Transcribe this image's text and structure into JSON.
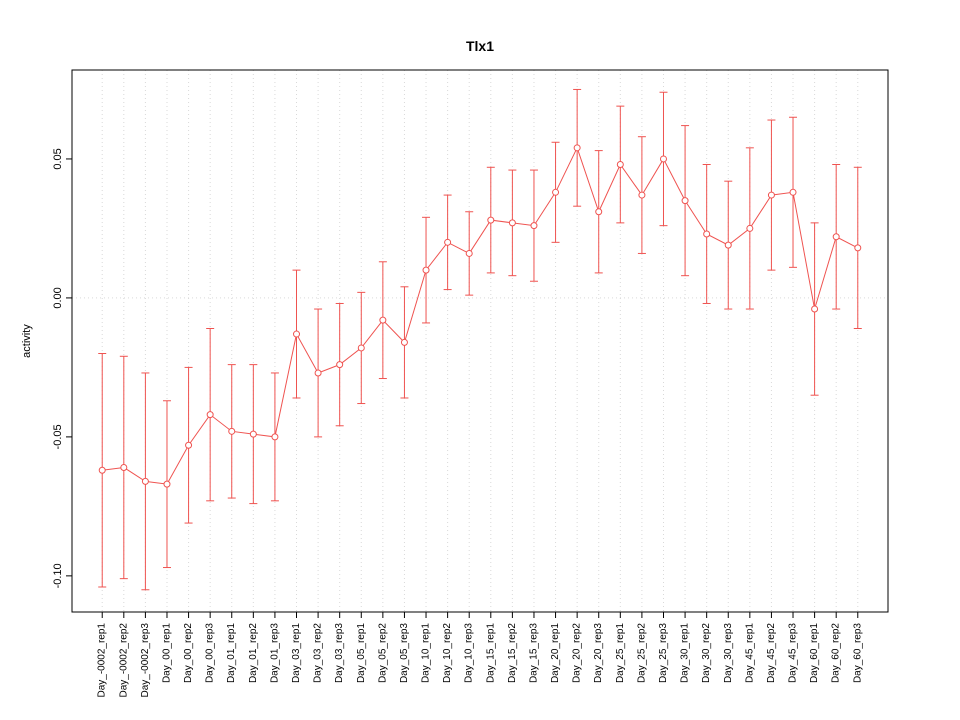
{
  "page": {
    "background": "#ffffff"
  },
  "chart_data": {
    "type": "line",
    "title": "Tlx1",
    "xlabel": "",
    "ylabel": "activity",
    "legend": "none",
    "marker": "open-circle",
    "error_bars": true,
    "series_color": "#ef5350",
    "grid_color": "#d9d9d9",
    "axis_color": "#000000",
    "grid": "dotted vertical line per category, dotted horizontal line at 0",
    "ylim": [
      -0.113,
      0.082
    ],
    "yticks": [
      0.05,
      0.0,
      -0.05,
      -0.1
    ],
    "ytick_labels": [
      "0.05",
      "0.00",
      "-0.05",
      "-0.10"
    ],
    "categories": [
      "Day_-0002_rep1",
      "Day_-0002_rep2",
      "Day_-0002_rep3",
      "Day_00_rep1",
      "Day_00_rep2",
      "Day_00_rep3",
      "Day_01_rep1",
      "Day_01_rep2",
      "Day_01_rep3",
      "Day_03_rep1",
      "Day_03_rep2",
      "Day_03_rep3",
      "Day_05_rep1",
      "Day_05_rep2",
      "Day_05_rep3",
      "Day_10_rep1",
      "Day_10_rep2",
      "Day_10_rep3",
      "Day_15_rep1",
      "Day_15_rep2",
      "Day_15_rep3",
      "Day_20_rep1",
      "Day_20_rep2",
      "Day_20_rep3",
      "Day_25_rep1",
      "Day_25_rep2",
      "Day_25_rep3",
      "Day_30_rep1",
      "Day_30_rep2",
      "Day_30_rep3",
      "Day_45_rep1",
      "Day_45_rep2",
      "Day_45_rep3",
      "Day_60_rep1",
      "Day_60_rep2",
      "Day_60_rep3"
    ],
    "values": [
      -0.062,
      -0.061,
      -0.066,
      -0.067,
      -0.053,
      -0.042,
      -0.048,
      -0.049,
      -0.05,
      -0.013,
      -0.027,
      -0.024,
      -0.018,
      -0.008,
      -0.016,
      0.01,
      0.02,
      0.016,
      0.028,
      0.027,
      0.026,
      0.038,
      0.054,
      0.031,
      0.048,
      0.037,
      0.05,
      0.035,
      0.023,
      0.019,
      0.025,
      0.037,
      0.038,
      -0.004,
      0.022,
      0.018
    ],
    "errors": [
      0.042,
      0.04,
      0.039,
      0.03,
      0.028,
      0.031,
      0.024,
      0.025,
      0.023,
      0.023,
      0.023,
      0.022,
      0.02,
      0.021,
      0.02,
      0.019,
      0.017,
      0.015,
      0.019,
      0.019,
      0.02,
      0.018,
      0.021,
      0.022,
      0.021,
      0.021,
      0.024,
      0.027,
      0.025,
      0.023,
      0.029,
      0.027,
      0.027,
      0.031,
      0.026,
      0.029
    ]
  }
}
